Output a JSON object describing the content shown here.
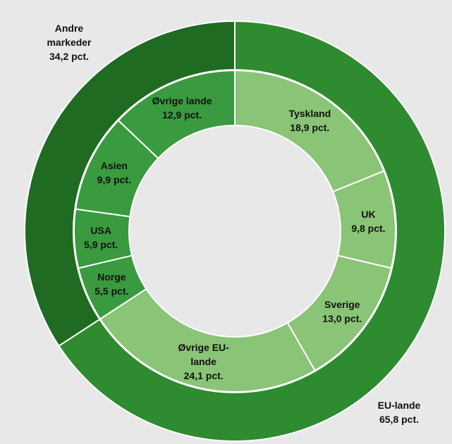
{
  "chart_data": {
    "type": "nested_donut",
    "outer": {
      "labels": [
        "EU-lande",
        "Andre markeder"
      ],
      "values": [
        65.8,
        34.2
      ],
      "value_labels": [
        "65,8 pct.",
        "34,2 pct."
      ],
      "colors": [
        "#2e8b30",
        "#1f6b22"
      ]
    },
    "inner": {
      "labels": [
        "Tyskland",
        "UK",
        "Sverige",
        "Øvrige EU-lande",
        "Norge",
        "USA",
        "Asien",
        "Øvrige lande"
      ],
      "values": [
        18.9,
        9.8,
        13.0,
        24.1,
        5.5,
        5.9,
        9.9,
        12.9
      ],
      "value_labels": [
        "18,9 pct.",
        "9,8 pct.",
        "13,0 pct.",
        "24,1 pct.",
        "5,5 pct.",
        "5,9 pct.",
        "9,9 pct.",
        "12,9 pct."
      ],
      "colors": [
        "#8ac476",
        "#8ac476",
        "#8ac476",
        "#8ac476",
        "#3a9a40",
        "#3a9a40",
        "#3a9a40",
        "#3a9a40"
      ]
    }
  }
}
